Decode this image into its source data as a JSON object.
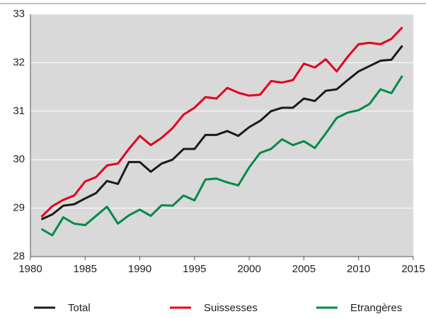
{
  "chart_data": {
    "type": "line",
    "x": [
      1981,
      1982,
      1983,
      1984,
      1985,
      1986,
      1987,
      1988,
      1989,
      1990,
      1991,
      1992,
      1993,
      1994,
      1995,
      1996,
      1997,
      1998,
      1999,
      2000,
      2001,
      2002,
      2003,
      2004,
      2005,
      2006,
      2007,
      2008,
      2009,
      2010,
      2011,
      2012,
      2013,
      2014
    ],
    "series": [
      {
        "name": "Total",
        "color": "#1a1a1a",
        "values": [
          28.77,
          28.87,
          29.05,
          29.08,
          29.2,
          29.31,
          29.56,
          29.5,
          29.95,
          29.95,
          29.75,
          29.92,
          30.0,
          30.22,
          30.22,
          30.51,
          30.51,
          30.59,
          30.49,
          30.67,
          30.8,
          31.0,
          31.07,
          31.07,
          31.26,
          31.21,
          31.42,
          31.45,
          31.64,
          31.82,
          31.93,
          32.04,
          32.06,
          32.35
        ]
      },
      {
        "name": "Suissesses",
        "color": "#e3001b",
        "values": [
          28.82,
          29.04,
          29.17,
          29.26,
          29.55,
          29.64,
          29.88,
          29.92,
          30.22,
          30.49,
          30.3,
          30.45,
          30.65,
          30.93,
          31.07,
          31.29,
          31.26,
          31.48,
          31.38,
          31.32,
          31.34,
          31.62,
          31.59,
          31.64,
          31.98,
          31.9,
          32.07,
          31.82,
          32.12,
          32.38,
          32.41,
          32.38,
          32.49,
          32.73
        ]
      },
      {
        "name": "Etrangères",
        "color": "#008a45",
        "values": [
          28.57,
          28.44,
          28.81,
          28.68,
          28.65,
          28.84,
          29.03,
          28.68,
          28.85,
          28.97,
          28.84,
          29.06,
          29.05,
          29.26,
          29.16,
          29.59,
          29.61,
          29.53,
          29.47,
          29.84,
          30.14,
          30.22,
          30.42,
          30.3,
          30.38,
          30.24,
          30.54,
          30.86,
          30.97,
          31.02,
          31.15,
          31.45,
          31.37,
          31.73
        ]
      }
    ],
    "xlim": [
      1980,
      2015
    ],
    "xticks": [
      1980,
      1985,
      1990,
      1995,
      2000,
      2005,
      2010,
      2015
    ],
    "ylim": [
      28,
      33
    ],
    "yticks": [
      28,
      29,
      30,
      31,
      32,
      33
    ],
    "grid": true,
    "legend": "bottom"
  }
}
